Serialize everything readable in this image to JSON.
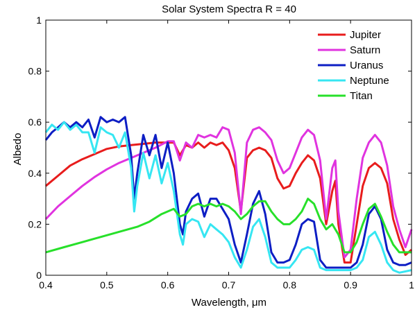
{
  "chart_data": {
    "type": "line",
    "title": "Solar System Spectra R = 40",
    "xlabel": "Wavelength, μm",
    "ylabel": "Albedo",
    "xlim": [
      0.4,
      1.0
    ],
    "ylim": [
      0,
      1
    ],
    "xticks": [
      "0.4",
      "0.5",
      "0.6",
      "0.7",
      "0.8",
      "0.9",
      "1"
    ],
    "yticks": [
      "0",
      "0.2",
      "0.4",
      "0.6",
      "0.8",
      "1"
    ],
    "grid": false,
    "legend_position": "top-right",
    "series": [
      {
        "name": "Jupiter",
        "color": "#e81c1c",
        "points": [
          [
            0.4,
            0.35
          ],
          [
            0.42,
            0.39
          ],
          [
            0.44,
            0.43
          ],
          [
            0.46,
            0.455
          ],
          [
            0.48,
            0.475
          ],
          [
            0.5,
            0.495
          ],
          [
            0.52,
            0.505
          ],
          [
            0.54,
            0.51
          ],
          [
            0.56,
            0.515
          ],
          [
            0.58,
            0.52
          ],
          [
            0.6,
            0.52
          ],
          [
            0.61,
            0.52
          ],
          [
            0.62,
            0.47
          ],
          [
            0.63,
            0.51
          ],
          [
            0.64,
            0.5
          ],
          [
            0.65,
            0.52
          ],
          [
            0.66,
            0.5
          ],
          [
            0.67,
            0.52
          ],
          [
            0.68,
            0.51
          ],
          [
            0.69,
            0.52
          ],
          [
            0.7,
            0.49
          ],
          [
            0.71,
            0.42
          ],
          [
            0.72,
            0.25
          ],
          [
            0.73,
            0.46
          ],
          [
            0.74,
            0.49
          ],
          [
            0.75,
            0.5
          ],
          [
            0.76,
            0.49
          ],
          [
            0.77,
            0.46
          ],
          [
            0.78,
            0.38
          ],
          [
            0.79,
            0.34
          ],
          [
            0.8,
            0.35
          ],
          [
            0.81,
            0.4
          ],
          [
            0.82,
            0.44
          ],
          [
            0.83,
            0.47
          ],
          [
            0.84,
            0.45
          ],
          [
            0.85,
            0.38
          ],
          [
            0.86,
            0.2
          ],
          [
            0.87,
            0.33
          ],
          [
            0.875,
            0.37
          ],
          [
            0.88,
            0.2
          ],
          [
            0.89,
            0.05
          ],
          [
            0.9,
            0.05
          ],
          [
            0.91,
            0.2
          ],
          [
            0.92,
            0.35
          ],
          [
            0.93,
            0.42
          ],
          [
            0.94,
            0.44
          ],
          [
            0.95,
            0.42
          ],
          [
            0.96,
            0.36
          ],
          [
            0.97,
            0.22
          ],
          [
            0.98,
            0.14
          ],
          [
            0.99,
            0.08
          ],
          [
            1.0,
            0.1
          ]
        ]
      },
      {
        "name": "Saturn",
        "color": "#e033df",
        "points": [
          [
            0.4,
            0.22
          ],
          [
            0.42,
            0.27
          ],
          [
            0.44,
            0.31
          ],
          [
            0.46,
            0.35
          ],
          [
            0.48,
            0.385
          ],
          [
            0.5,
            0.415
          ],
          [
            0.52,
            0.44
          ],
          [
            0.54,
            0.46
          ],
          [
            0.56,
            0.48
          ],
          [
            0.58,
            0.5
          ],
          [
            0.6,
            0.525
          ],
          [
            0.61,
            0.525
          ],
          [
            0.62,
            0.45
          ],
          [
            0.63,
            0.52
          ],
          [
            0.64,
            0.5
          ],
          [
            0.65,
            0.55
          ],
          [
            0.66,
            0.54
          ],
          [
            0.67,
            0.55
          ],
          [
            0.68,
            0.54
          ],
          [
            0.69,
            0.58
          ],
          [
            0.7,
            0.57
          ],
          [
            0.71,
            0.48
          ],
          [
            0.72,
            0.24
          ],
          [
            0.73,
            0.52
          ],
          [
            0.74,
            0.57
          ],
          [
            0.75,
            0.58
          ],
          [
            0.76,
            0.56
          ],
          [
            0.77,
            0.53
          ],
          [
            0.78,
            0.45
          ],
          [
            0.79,
            0.4
          ],
          [
            0.8,
            0.42
          ],
          [
            0.81,
            0.48
          ],
          [
            0.82,
            0.54
          ],
          [
            0.83,
            0.57
          ],
          [
            0.84,
            0.55
          ],
          [
            0.85,
            0.45
          ],
          [
            0.86,
            0.22
          ],
          [
            0.87,
            0.42
          ],
          [
            0.875,
            0.45
          ],
          [
            0.88,
            0.25
          ],
          [
            0.89,
            0.07
          ],
          [
            0.9,
            0.1
          ],
          [
            0.91,
            0.3
          ],
          [
            0.92,
            0.46
          ],
          [
            0.93,
            0.52
          ],
          [
            0.94,
            0.55
          ],
          [
            0.95,
            0.52
          ],
          [
            0.96,
            0.43
          ],
          [
            0.97,
            0.27
          ],
          [
            0.98,
            0.18
          ],
          [
            0.99,
            0.11
          ],
          [
            1.0,
            0.18
          ]
        ]
      },
      {
        "name": "Uranus",
        "color": "#0d1ec4",
        "points": [
          [
            0.4,
            0.53
          ],
          [
            0.41,
            0.56
          ],
          [
            0.42,
            0.58
          ],
          [
            0.43,
            0.6
          ],
          [
            0.44,
            0.58
          ],
          [
            0.45,
            0.6
          ],
          [
            0.46,
            0.58
          ],
          [
            0.47,
            0.61
          ],
          [
            0.48,
            0.54
          ],
          [
            0.49,
            0.62
          ],
          [
            0.5,
            0.6
          ],
          [
            0.51,
            0.61
          ],
          [
            0.52,
            0.6
          ],
          [
            0.53,
            0.62
          ],
          [
            0.54,
            0.47
          ],
          [
            0.545,
            0.3
          ],
          [
            0.55,
            0.4
          ],
          [
            0.56,
            0.55
          ],
          [
            0.57,
            0.47
          ],
          [
            0.58,
            0.55
          ],
          [
            0.59,
            0.42
          ],
          [
            0.6,
            0.52
          ],
          [
            0.61,
            0.4
          ],
          [
            0.62,
            0.2
          ],
          [
            0.625,
            0.16
          ],
          [
            0.63,
            0.25
          ],
          [
            0.64,
            0.3
          ],
          [
            0.65,
            0.32
          ],
          [
            0.66,
            0.23
          ],
          [
            0.67,
            0.3
          ],
          [
            0.68,
            0.3
          ],
          [
            0.69,
            0.26
          ],
          [
            0.7,
            0.22
          ],
          [
            0.71,
            0.12
          ],
          [
            0.72,
            0.05
          ],
          [
            0.73,
            0.16
          ],
          [
            0.74,
            0.28
          ],
          [
            0.75,
            0.33
          ],
          [
            0.76,
            0.24
          ],
          [
            0.77,
            0.09
          ],
          [
            0.78,
            0.05
          ],
          [
            0.79,
            0.05
          ],
          [
            0.8,
            0.06
          ],
          [
            0.81,
            0.12
          ],
          [
            0.82,
            0.2
          ],
          [
            0.83,
            0.22
          ],
          [
            0.84,
            0.21
          ],
          [
            0.85,
            0.06
          ],
          [
            0.86,
            0.03
          ],
          [
            0.87,
            0.03
          ],
          [
            0.88,
            0.03
          ],
          [
            0.89,
            0.03
          ],
          [
            0.9,
            0.03
          ],
          [
            0.91,
            0.05
          ],
          [
            0.92,
            0.12
          ],
          [
            0.93,
            0.24
          ],
          [
            0.94,
            0.27
          ],
          [
            0.95,
            0.22
          ],
          [
            0.96,
            0.1
          ],
          [
            0.97,
            0.05
          ],
          [
            0.98,
            0.04
          ],
          [
            0.99,
            0.04
          ],
          [
            1.0,
            0.05
          ]
        ]
      },
      {
        "name": "Neptune",
        "color": "#36e6f2",
        "points": [
          [
            0.4,
            0.56
          ],
          [
            0.41,
            0.59
          ],
          [
            0.42,
            0.57
          ],
          [
            0.43,
            0.6
          ],
          [
            0.44,
            0.57
          ],
          [
            0.45,
            0.59
          ],
          [
            0.46,
            0.56
          ],
          [
            0.47,
            0.56
          ],
          [
            0.48,
            0.48
          ],
          [
            0.49,
            0.58
          ],
          [
            0.5,
            0.56
          ],
          [
            0.51,
            0.55
          ],
          [
            0.52,
            0.5
          ],
          [
            0.53,
            0.56
          ],
          [
            0.54,
            0.42
          ],
          [
            0.545,
            0.25
          ],
          [
            0.55,
            0.35
          ],
          [
            0.56,
            0.48
          ],
          [
            0.57,
            0.38
          ],
          [
            0.58,
            0.47
          ],
          [
            0.59,
            0.36
          ],
          [
            0.6,
            0.44
          ],
          [
            0.61,
            0.33
          ],
          [
            0.62,
            0.16
          ],
          [
            0.625,
            0.12
          ],
          [
            0.63,
            0.2
          ],
          [
            0.64,
            0.22
          ],
          [
            0.65,
            0.21
          ],
          [
            0.66,
            0.15
          ],
          [
            0.67,
            0.2
          ],
          [
            0.68,
            0.18
          ],
          [
            0.69,
            0.16
          ],
          [
            0.7,
            0.13
          ],
          [
            0.71,
            0.07
          ],
          [
            0.72,
            0.03
          ],
          [
            0.73,
            0.1
          ],
          [
            0.74,
            0.19
          ],
          [
            0.75,
            0.22
          ],
          [
            0.76,
            0.15
          ],
          [
            0.77,
            0.05
          ],
          [
            0.78,
            0.03
          ],
          [
            0.79,
            0.03
          ],
          [
            0.8,
            0.03
          ],
          [
            0.81,
            0.06
          ],
          [
            0.82,
            0.1
          ],
          [
            0.83,
            0.11
          ],
          [
            0.84,
            0.1
          ],
          [
            0.85,
            0.03
          ],
          [
            0.86,
            0.02
          ],
          [
            0.88,
            0.02
          ],
          [
            0.9,
            0.02
          ],
          [
            0.91,
            0.03
          ],
          [
            0.92,
            0.06
          ],
          [
            0.93,
            0.15
          ],
          [
            0.94,
            0.17
          ],
          [
            0.95,
            0.12
          ],
          [
            0.96,
            0.05
          ],
          [
            0.97,
            0.02
          ],
          [
            0.98,
            0.01
          ],
          [
            1.0,
            0.02
          ]
        ]
      },
      {
        "name": "Titan",
        "color": "#27e02a",
        "points": [
          [
            0.4,
            0.09
          ],
          [
            0.43,
            0.11
          ],
          [
            0.46,
            0.13
          ],
          [
            0.49,
            0.15
          ],
          [
            0.52,
            0.17
          ],
          [
            0.55,
            0.19
          ],
          [
            0.57,
            0.21
          ],
          [
            0.59,
            0.24
          ],
          [
            0.61,
            0.26
          ],
          [
            0.62,
            0.23
          ],
          [
            0.63,
            0.24
          ],
          [
            0.64,
            0.27
          ],
          [
            0.65,
            0.28
          ],
          [
            0.66,
            0.27
          ],
          [
            0.67,
            0.28
          ],
          [
            0.68,
            0.27
          ],
          [
            0.69,
            0.28
          ],
          [
            0.7,
            0.27
          ],
          [
            0.71,
            0.25
          ],
          [
            0.72,
            0.22
          ],
          [
            0.73,
            0.24
          ],
          [
            0.74,
            0.27
          ],
          [
            0.75,
            0.29
          ],
          [
            0.76,
            0.29
          ],
          [
            0.77,
            0.25
          ],
          [
            0.78,
            0.22
          ],
          [
            0.79,
            0.2
          ],
          [
            0.8,
            0.2
          ],
          [
            0.81,
            0.22
          ],
          [
            0.82,
            0.25
          ],
          [
            0.83,
            0.3
          ],
          [
            0.84,
            0.28
          ],
          [
            0.85,
            0.22
          ],
          [
            0.86,
            0.18
          ],
          [
            0.87,
            0.2
          ],
          [
            0.88,
            0.16
          ],
          [
            0.89,
            0.09
          ],
          [
            0.9,
            0.09
          ],
          [
            0.91,
            0.13
          ],
          [
            0.92,
            0.2
          ],
          [
            0.93,
            0.26
          ],
          [
            0.94,
            0.28
          ],
          [
            0.95,
            0.23
          ],
          [
            0.96,
            0.17
          ],
          [
            0.97,
            0.12
          ],
          [
            0.98,
            0.09
          ],
          [
            1.0,
            0.09
          ]
        ]
      }
    ]
  }
}
